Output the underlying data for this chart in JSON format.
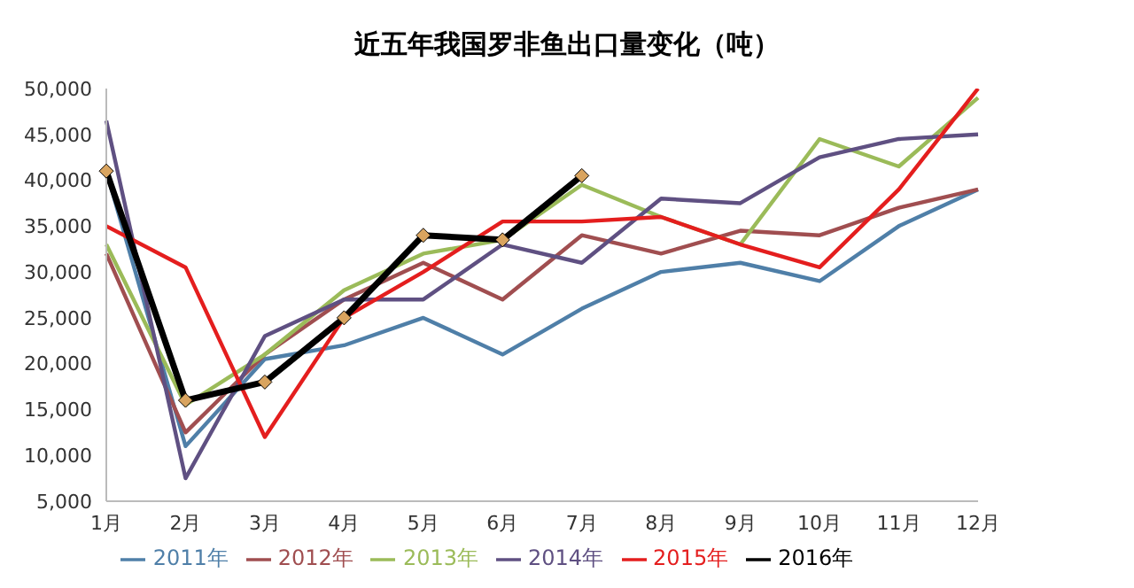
{
  "chart_data": {
    "type": "line",
    "title": "近五年我国罗非鱼出口量变化（吨）",
    "categories": [
      "1月",
      "2月",
      "3月",
      "4月",
      "5月",
      "6月",
      "7月",
      "8月",
      "9月",
      "10月",
      "11月",
      "12月"
    ],
    "series": [
      {
        "name": "2011年",
        "color": "#4f7fa8",
        "values": [
          41000,
          11000,
          20500,
          22000,
          25000,
          21000,
          26000,
          30000,
          31000,
          29000,
          35000,
          39000
        ]
      },
      {
        "name": "2012年",
        "color": "#a04e50",
        "values": [
          32000,
          12500,
          21000,
          27000,
          31000,
          27000,
          34000,
          32000,
          34500,
          34000,
          37000,
          39000
        ]
      },
      {
        "name": "2013年",
        "color": "#9bbb59",
        "values": [
          33000,
          15500,
          21000,
          28000,
          32000,
          33500,
          39500,
          36000,
          33000,
          44500,
          41500,
          49000
        ]
      },
      {
        "name": "2014年",
        "color": "#5f5082",
        "values": [
          46500,
          7500,
          23000,
          27000,
          27000,
          33000,
          31000,
          38000,
          37500,
          42500,
          44500,
          45000
        ]
      },
      {
        "name": "2015年",
        "color": "#e41e1e",
        "values": [
          35000,
          30500,
          12000,
          25000,
          30000,
          35500,
          35500,
          36000,
          33000,
          30500,
          39000,
          50000
        ]
      },
      {
        "name": "2016年",
        "color": "#000000",
        "marker": "diamond",
        "values": [
          41000,
          16000,
          18000,
          25000,
          34000,
          33500,
          40500,
          null,
          null,
          null,
          null,
          null
        ]
      }
    ],
    "ylim": [
      5000,
      50000
    ],
    "yticks": [
      {
        "value": 5000,
        "label": "5,000"
      },
      {
        "value": 10000,
        "label": "10,000"
      },
      {
        "value": 15000,
        "label": "15,000"
      },
      {
        "value": 20000,
        "label": "20,000"
      },
      {
        "value": 25000,
        "label": "25,000"
      },
      {
        "value": 30000,
        "label": "30,000"
      },
      {
        "value": 35000,
        "label": "35,000"
      },
      {
        "value": 40000,
        "label": "40,000"
      },
      {
        "value": 45000,
        "label": "45,000"
      },
      {
        "value": 50000,
        "label": "50,000"
      }
    ],
    "grid": false,
    "legend": "bottom"
  }
}
